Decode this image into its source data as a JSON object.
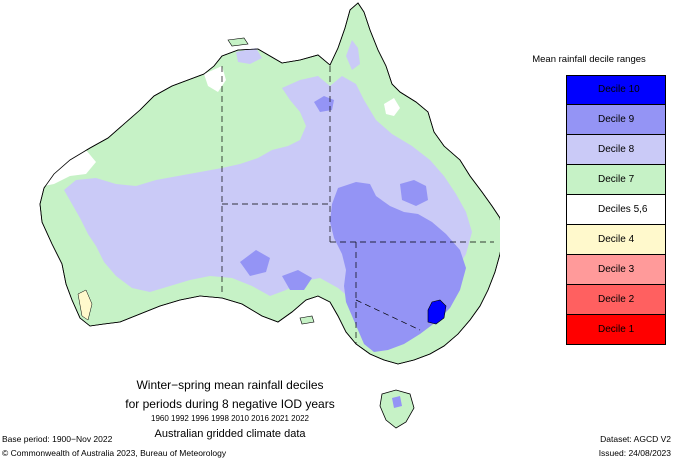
{
  "legend": {
    "title": "Mean rainfall decile ranges",
    "items": [
      {
        "label": "Decile 10",
        "color": "#0000ff"
      },
      {
        "label": "Decile 9",
        "color": "#9494f5"
      },
      {
        "label": "Decile 8",
        "color": "#cacaf7"
      },
      {
        "label": "Decile 7",
        "color": "#c6f2c6"
      },
      {
        "label": "Deciles 5,6",
        "color": "#ffffff"
      },
      {
        "label": "Decile 4",
        "color": "#fff9cc"
      },
      {
        "label": "Decile 3",
        "color": "#ff9a9a"
      },
      {
        "label": "Decile 2",
        "color": "#ff6060"
      },
      {
        "label": "Decile 1",
        "color": "#ff0000"
      }
    ]
  },
  "caption": {
    "line1": "Winter−spring mean rainfall deciles",
    "line2": "for periods during 8 negative IOD years",
    "years": "1960 1992 1996 1998 2010 2016 2021 2022",
    "source": "Australian gridded climate data"
  },
  "footer": {
    "base_period": "Base period: 1900−Nov 2022",
    "copyright": "© Commonwealth of Australia 2023, Bureau of Meteorology",
    "dataset": "Dataset: AGCD V2",
    "issued": "Issued: 24/08/2023"
  },
  "map_colors": {
    "decile10": "#0000ff",
    "decile9": "#9494f5",
    "decile8": "#cacaf7",
    "decile7": "#c6f2c6",
    "decile5_6": "#ffffff",
    "decile4": "#fff9cc",
    "outline": "#000000"
  }
}
